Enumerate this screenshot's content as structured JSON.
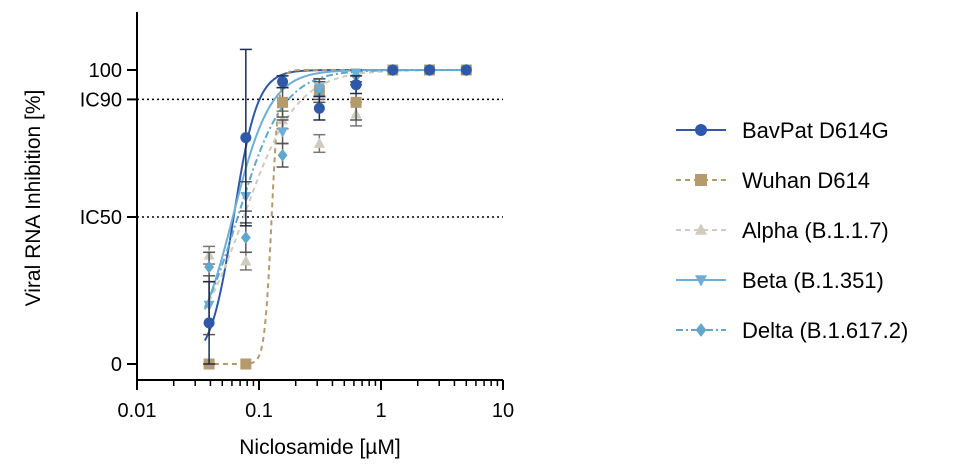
{
  "chart_data": {
    "type": "scatter",
    "xlabel": "Niclosamide [µM]",
    "ylabel": "Viral  RNA Inhibition [%]",
    "xscale": "log",
    "xlim": [
      0.01,
      10
    ],
    "ylim": [
      0,
      110
    ],
    "x_ticks": [
      {
        "value": 0.01,
        "label": "0.01"
      },
      {
        "value": 0.1,
        "label": "0.1"
      },
      {
        "value": 1,
        "label": "1"
      },
      {
        "value": 10,
        "label": "10"
      }
    ],
    "y_ticks": [
      {
        "value": 0,
        "label": "0"
      },
      {
        "value": 50,
        "label": "IC50"
      },
      {
        "value": 90,
        "label": "IC90"
      },
      {
        "value": 100,
        "label": "100"
      }
    ],
    "reference_lines": [
      {
        "y": 50,
        "label": "IC50"
      },
      {
        "y": 90,
        "label": "IC90"
      }
    ],
    "legend_position": "right",
    "grid": false,
    "series": [
      {
        "name": "BavPat D614G",
        "color": "#2f58a8",
        "marker": "circle",
        "line": "solid",
        "fit": {
          "ic50": 0.062,
          "hill": 4.5
        },
        "x": [
          0.039,
          0.078,
          0.156,
          0.3125,
          0.625,
          1.25,
          2.5,
          5
        ],
        "y": [
          14,
          77,
          96,
          87,
          95,
          100,
          100,
          100
        ],
        "err": [
          14,
          30,
          2,
          4,
          3,
          1,
          1,
          1
        ]
      },
      {
        "name": "Wuhan D614",
        "color": "#b49a6c",
        "marker": "square",
        "line": "dashed",
        "fit": {
          "ic50": 0.127,
          "hill": 15
        },
        "x": [
          0.039,
          0.078,
          0.156,
          0.3125,
          0.625,
          1.25,
          2.5,
          5
        ],
        "y": [
          0,
          0,
          89,
          93,
          89,
          100,
          100,
          100
        ],
        "err": [
          0,
          0,
          5,
          4,
          6,
          1,
          1,
          1
        ]
      },
      {
        "name": "Alpha (B.1.1.7)",
        "color": "#cfcbbd",
        "marker": "triangle-up",
        "line": "dashed",
        "fit": {
          "ic50": 0.075,
          "hill": 2.0
        },
        "x": [
          0.039,
          0.078,
          0.156,
          0.3125,
          0.625,
          1.25,
          2.5,
          5
        ],
        "y": [
          37,
          35,
          83,
          75,
          85,
          100,
          100,
          100
        ],
        "err": [
          3,
          3,
          3,
          3,
          4,
          1,
          1,
          1
        ]
      },
      {
        "name": "Beta (B.1.351)",
        "color": "#6eaed6",
        "marker": "triangle-down",
        "line": "solid",
        "fit": {
          "ic50": 0.061,
          "hill": 2.8
        },
        "x": [
          0.039,
          0.078,
          0.156,
          0.3125,
          0.625,
          1.25,
          2.5,
          5
        ],
        "y": [
          20,
          57,
          79,
          94,
          99,
          100,
          100,
          100
        ],
        "err": [
          10,
          5,
          4,
          3,
          1,
          1,
          1,
          1
        ]
      },
      {
        "name": "Delta (B.1.617.2)",
        "color": "#5fa8cc",
        "marker": "diamond",
        "line": "dashdot",
        "fit": {
          "ic50": 0.067,
          "hill": 2.3
        },
        "x": [
          0.039,
          0.078,
          0.156,
          0.3125,
          0.625,
          1.25,
          2.5,
          5
        ],
        "y": [
          33,
          43,
          71,
          93,
          98,
          100,
          100,
          100
        ],
        "err": [
          5,
          5,
          4,
          3,
          2,
          1,
          1,
          1
        ]
      }
    ]
  }
}
